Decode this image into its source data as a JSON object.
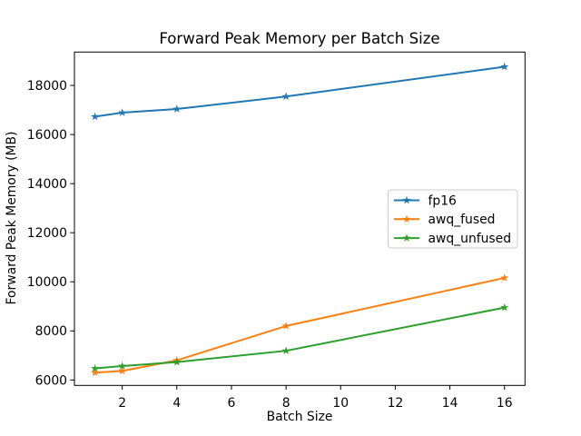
{
  "figure": {
    "background": "#ffffff"
  },
  "chart_data": {
    "type": "line",
    "title": "Forward Peak Memory per Batch Size",
    "xlabel": "Batch Size",
    "ylabel": "Forward Peak Memory (MB)",
    "x": [
      1,
      2,
      4,
      8,
      16
    ],
    "series": [
      {
        "name": "fp16",
        "color": "#1f77b4",
        "values": [
          16730,
          16890,
          17040,
          17550,
          18760
        ]
      },
      {
        "name": "awq_fused",
        "color": "#ff7f0e",
        "values": [
          6300,
          6370,
          6800,
          8200,
          10160
        ]
      },
      {
        "name": "awq_unfused",
        "color": "#2ca02c",
        "values": [
          6470,
          6570,
          6730,
          7190,
          8950
        ]
      }
    ],
    "xticks": [
      2,
      4,
      6,
      8,
      10,
      12,
      14,
      16
    ],
    "yticks": [
      6000,
      8000,
      10000,
      12000,
      14000,
      16000,
      18000
    ],
    "xlim": [
      0.25,
      16.75
    ],
    "ylim": [
      5780,
      19360
    ],
    "marker": "star",
    "grid": false,
    "legend": {
      "position": "center right",
      "entries": [
        "fp16",
        "awq_fused",
        "awq_unfused"
      ]
    },
    "colors": {
      "text": "#000000",
      "axes": "#000000",
      "legend_border": "#cccccc",
      "background": "#ffffff"
    }
  }
}
